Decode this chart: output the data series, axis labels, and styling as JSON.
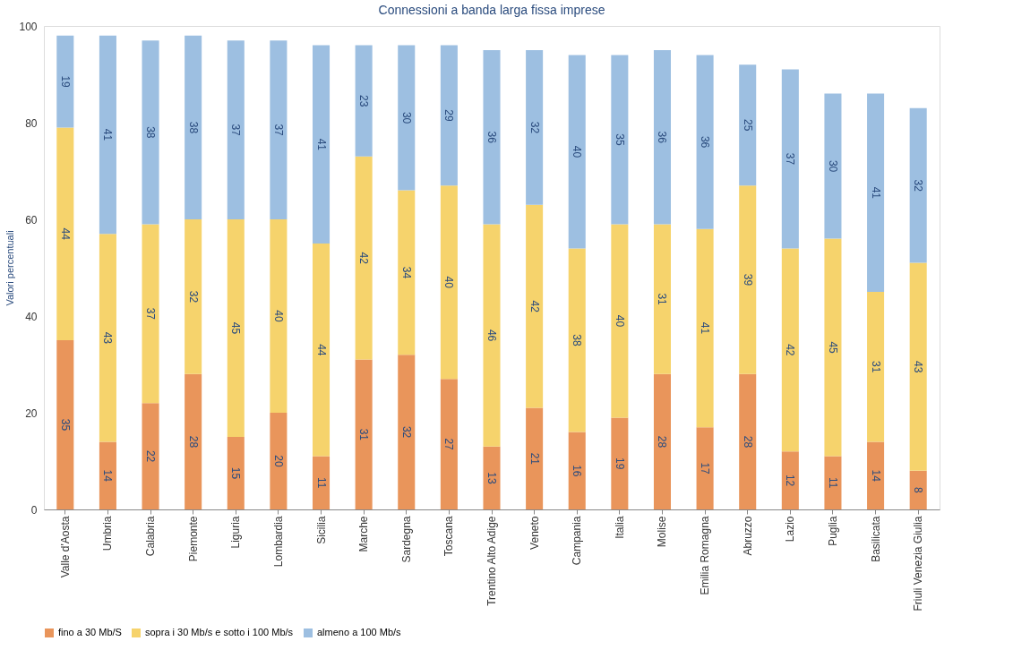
{
  "chart_data": {
    "type": "bar",
    "title": "Connessioni a banda larga fissa imprese",
    "ylabel": "Valori percentuali",
    "stacked": true,
    "data_labels": true,
    "legend": "bottom",
    "grid": false,
    "ylim": [
      0,
      100
    ],
    "yticks": [
      0,
      20,
      40,
      60,
      80,
      100
    ],
    "categories": [
      "Valle d'Aosta",
      "Umbria",
      "Calabria",
      "Piemonte",
      "Liguria",
      "Lombardia",
      "Sicilia",
      "Marche",
      "Sardegna",
      "Toscana",
      "Trentino Alto Adige",
      "Veneto",
      "Campania",
      "Italia",
      "Molise",
      "Emilia Romagna",
      "Abruzzo",
      "Lazio",
      "Puglia",
      "Basilicata",
      "Friuli Venezia Giulia"
    ],
    "series": [
      {
        "name": "fino a 30 Mb/S",
        "color": "#e9955b",
        "values": [
          35,
          14,
          22,
          28,
          15,
          20,
          11,
          31,
          32,
          27,
          13,
          21,
          16,
          19,
          28,
          17,
          28,
          12,
          11,
          14,
          8
        ]
      },
      {
        "name": "sopra i 30 Mb/s e sotto i 100 Mb/s",
        "color": "#f6d36c",
        "values": [
          44,
          43,
          37,
          32,
          45,
          40,
          44,
          42,
          34,
          40,
          46,
          42,
          38,
          40,
          31,
          41,
          39,
          42,
          45,
          31,
          43
        ]
      },
      {
        "name": "almeno a 100 Mb/s",
        "color": "#9dbfe1",
        "values": [
          19,
          41,
          38,
          38,
          37,
          37,
          41,
          23,
          30,
          29,
          36,
          32,
          40,
          35,
          36,
          36,
          25,
          37,
          30,
          41,
          32
        ]
      }
    ]
  }
}
